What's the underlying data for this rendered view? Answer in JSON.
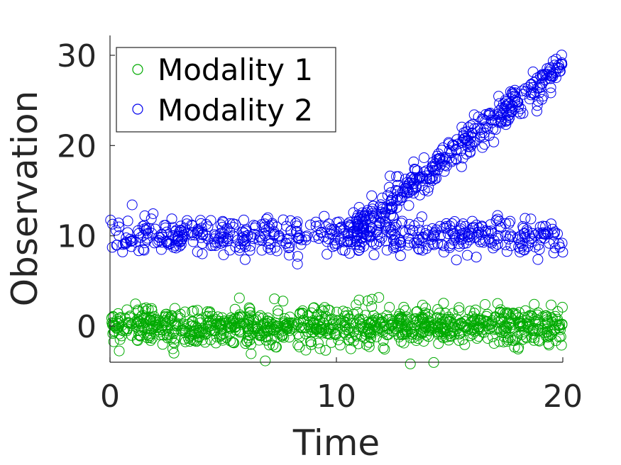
{
  "chart_data": {
    "type": "scatter",
    "xlabel": "Time",
    "ylabel": "Observation",
    "xlim": [
      0,
      20
    ],
    "ylim": [
      -4,
      32
    ],
    "xticks": [
      0,
      10,
      20
    ],
    "yticks": [
      0,
      10,
      20,
      30
    ],
    "grid": false,
    "legend_position": "top-left",
    "marker": "open-circle",
    "series": [
      {
        "name": "Modality 1",
        "color": "#00aa00",
        "pattern": "constant mean 0, noise sd ~1, t in [0,20]",
        "model": {
          "t_start": 0,
          "t_end": 20,
          "mean": 0,
          "sd": 1.0,
          "count": 1000
        }
      },
      {
        "name": "Modality 2",
        "color": "#0000ee",
        "pattern": "mean 10 for all t; second branch rises from 10 at t=10.5 to ~29 at t=20",
        "model": {
          "base": {
            "t_start": 0,
            "t_end": 20,
            "mean": 10,
            "sd": 1.0,
            "count": 560
          },
          "trend": {
            "t_start": 10.5,
            "t_end": 20,
            "start_value": 10,
            "end_value": 29,
            "sd": 0.9,
            "count": 380
          }
        }
      }
    ]
  }
}
